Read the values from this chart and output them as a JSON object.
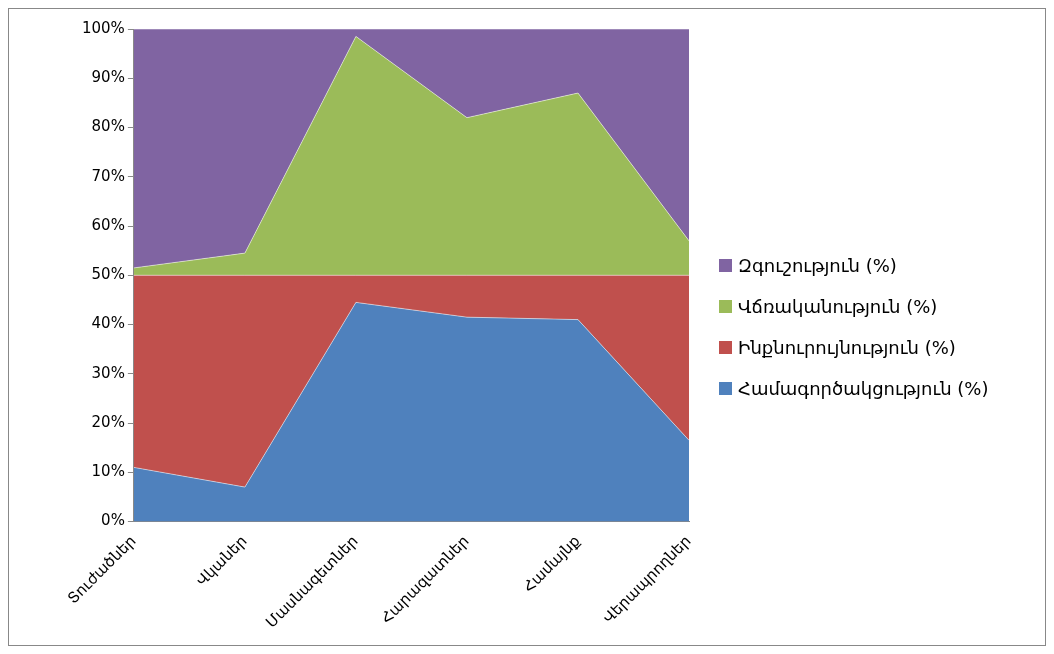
{
  "chart_data": {
    "type": "area",
    "stacked": true,
    "categories": [
      "Տուժածներ",
      "Վկաներ",
      "Մասնագետներ",
      "Հարազատներ",
      "Համայնք",
      "Վերապրողներ"
    ],
    "series": [
      {
        "name": "Համագործակցություն (%)",
        "color": "#4f81bd",
        "values": [
          11,
          7,
          44.5,
          41.5,
          41,
          16.5
        ]
      },
      {
        "name": "Ինքնուրույնություն (%)",
        "color": "#c0504d",
        "values": [
          39,
          43,
          5.5,
          8.5,
          9,
          33.5
        ]
      },
      {
        "name": "Վճռականություն (%)",
        "color": "#9bbb59",
        "values": [
          1.5,
          4.5,
          48.5,
          32,
          37,
          7
        ]
      },
      {
        "name": "Զգուշություն (%)",
        "color": "#8064a2",
        "values": [
          48.5,
          45.5,
          1.5,
          18,
          13,
          43
        ]
      }
    ],
    "ylim": [
      0,
      100
    ],
    "yticks": [
      {
        "value": 0,
        "label": "0%"
      },
      {
        "value": 10,
        "label": "10%"
      },
      {
        "value": 20,
        "label": "20%"
      },
      {
        "value": 30,
        "label": "30%"
      },
      {
        "value": 40,
        "label": "40%"
      },
      {
        "value": 50,
        "label": "50%"
      },
      {
        "value": 60,
        "label": "60%"
      },
      {
        "value": 70,
        "label": "70%"
      },
      {
        "value": 80,
        "label": "80%"
      },
      {
        "value": 90,
        "label": "90%"
      },
      {
        "value": 100,
        "label": "100%"
      }
    ],
    "grid": false,
    "legend": "right"
  }
}
